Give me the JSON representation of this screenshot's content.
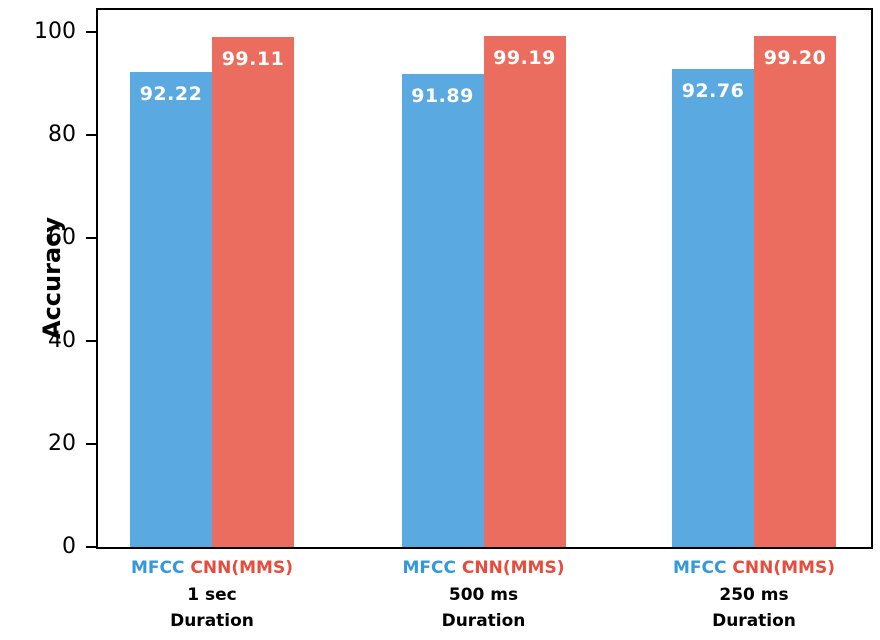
{
  "figure": {
    "background": "#FFFFFF",
    "axis_color": "#000000",
    "text_color": "#000000"
  },
  "chart_data": {
    "type": "bar",
    "title": "",
    "ylabel": "Accuracy",
    "xlabel": "",
    "categories": [
      "1 sec",
      "500 ms",
      "250 ms"
    ],
    "group_sublabel": "Duration",
    "series": [
      {
        "name": "MFCC",
        "values": [
          92.22,
          91.89,
          92.76
        ],
        "value_labels": [
          "92.22",
          "91.89",
          "92.76"
        ],
        "bar_color": "#5AA9E1",
        "name_color": "#3498DB"
      },
      {
        "name": "CNN(MMS)",
        "values": [
          99.11,
          99.19,
          99.2
        ],
        "value_labels": [
          "99.11",
          "99.19",
          "99.20"
        ],
        "bar_color": "#EB6D5F",
        "name_color": "#E74C3C"
      }
    ],
    "yticks": [
      0,
      20,
      40,
      60,
      80,
      100
    ],
    "ylim": [
      0,
      104.3
    ],
    "grid": false,
    "legend_position": "x-tick-labels",
    "value_label_color": "#FFFFFF"
  }
}
